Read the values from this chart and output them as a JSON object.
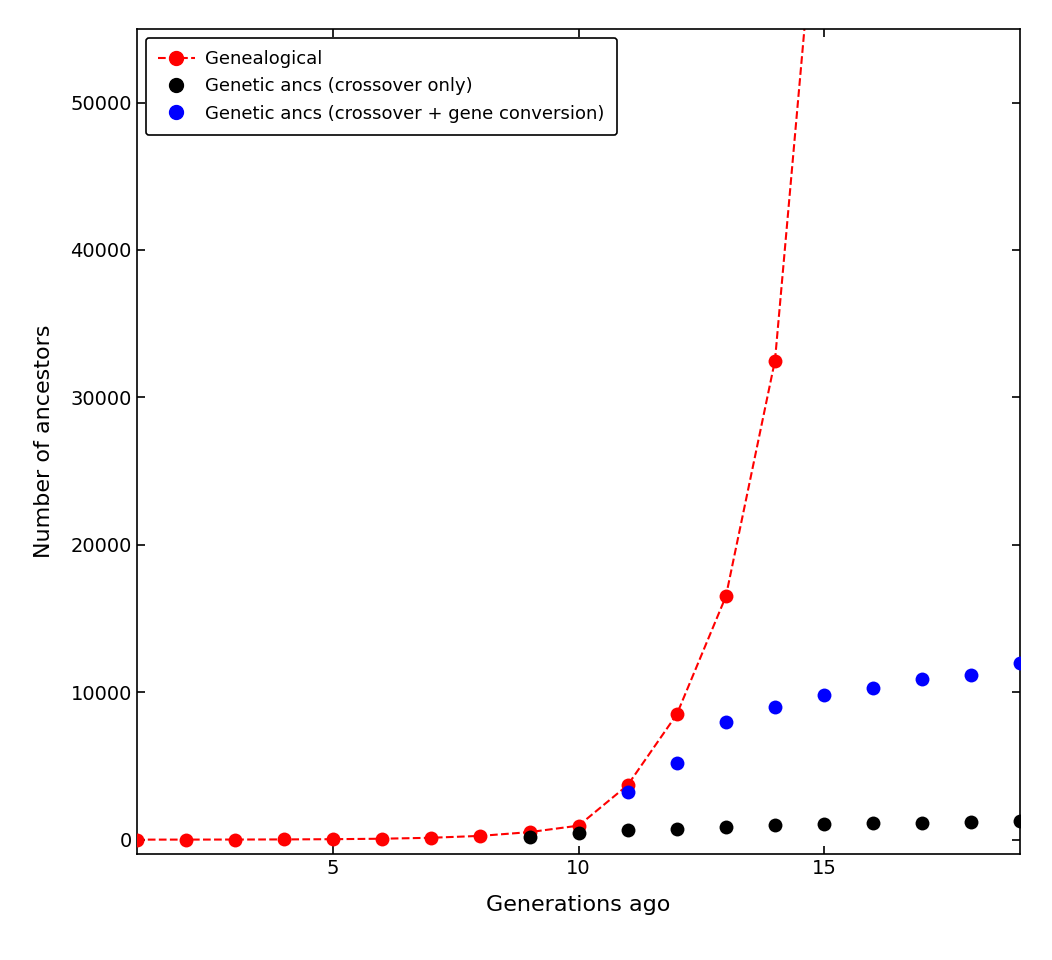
{
  "title": "",
  "xlabel": "Generations ago",
  "ylabel": "Number of ancestors",
  "xlim": [
    1,
    19
  ],
  "ylim": [
    -1000,
    55000
  ],
  "yticks": [
    0,
    10000,
    20000,
    30000,
    40000,
    50000
  ],
  "xticks": [
    5,
    10,
    15
  ],
  "background_color": "#ffffff",
  "genealogical_x": [
    1,
    2,
    3,
    4,
    5,
    6,
    7,
    8,
    9,
    10,
    11,
    12,
    13,
    14
  ],
  "genealogical_y": [
    2,
    4,
    8,
    16,
    32,
    64,
    128,
    256,
    512,
    950,
    3700,
    8500,
    16500,
    32500
  ],
  "genealogical_line_x": [
    1,
    2,
    3,
    4,
    5,
    6,
    7,
    8,
    9,
    10,
    11,
    12,
    13,
    14,
    14.6
  ],
  "genealogical_line_y": [
    2,
    4,
    8,
    16,
    32,
    64,
    128,
    256,
    512,
    950,
    3700,
    8500,
    16500,
    32500,
    55000
  ],
  "genetic_crossover_x": [
    9,
    10,
    11,
    12,
    13,
    14,
    15,
    16,
    17,
    18,
    19
  ],
  "genetic_crossover_y": [
    200,
    450,
    650,
    750,
    850,
    1000,
    1050,
    1100,
    1150,
    1200,
    1280
  ],
  "genetic_conversion_x": [
    11,
    12,
    13,
    14,
    15,
    16,
    17,
    18,
    19
  ],
  "genetic_conversion_y": [
    3200,
    5200,
    8000,
    9000,
    9800,
    10300,
    10900,
    11200,
    12000
  ],
  "red_color": "#ff0000",
  "black_color": "#000000",
  "blue_color": "#0000ff",
  "dot_size": 100,
  "legend_labels": [
    "Genealogical",
    "Genetic ancs (crossover only)",
    "Genetic ancs (crossover + gene conversion)"
  ]
}
